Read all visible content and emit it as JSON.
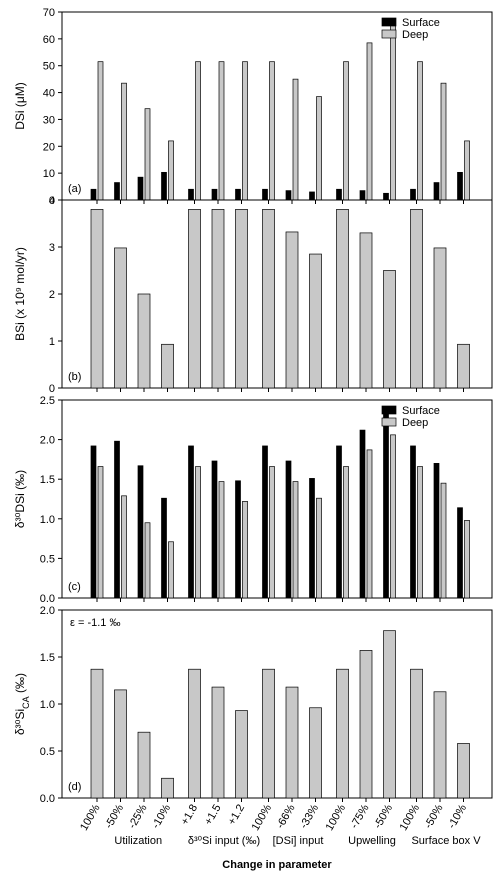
{
  "chart_data": [
    {
      "type": "bar",
      "ylabel": "DSi (μM)",
      "panel_label": "(a)",
      "ylim": [
        0,
        70
      ],
      "yticks": [
        0,
        10,
        20,
        30,
        40,
        50,
        60,
        70
      ],
      "legend": "upper right",
      "series": [
        {
          "name": "Surface",
          "color": "#000000",
          "values": [
            4,
            6.5,
            8.5,
            10.3,
            4,
            4,
            4,
            4,
            3.5,
            3,
            4,
            3.5,
            2.5,
            4,
            6.5,
            10.3
          ]
        },
        {
          "name": "Deep",
          "color": "#c8c8c8",
          "values": [
            51.5,
            43.5,
            34,
            22,
            51.5,
            51.5,
            51.5,
            51.5,
            45,
            38.5,
            51.5,
            58.5,
            65,
            51.5,
            43.5,
            22
          ]
        }
      ]
    },
    {
      "type": "bar",
      "ylabel": "BSi (x 10⁹ mol/yr)",
      "panel_label": "(b)",
      "ylim": [
        0,
        4
      ],
      "yticks": [
        0,
        1,
        2,
        3,
        4
      ],
      "series": [
        {
          "color": "#c8c8c8",
          "values": [
            3.8,
            2.98,
            2.0,
            0.93,
            3.8,
            3.8,
            3.8,
            3.8,
            3.32,
            2.85,
            3.8,
            3.3,
            2.5,
            3.8,
            2.98,
            0.93
          ]
        }
      ]
    },
    {
      "type": "bar",
      "ylabel": "δ³⁰DSi (‰)",
      "panel_label": "(c)",
      "ylim": [
        0,
        2.5
      ],
      "yticks": [
        {
          "value": 0,
          "label": "0.0"
        },
        {
          "value": 0.5,
          "label": "0.5"
        },
        {
          "value": 1,
          "label": "1.0"
        },
        {
          "value": 1.5,
          "label": "1.5"
        },
        {
          "value": 2,
          "label": "2.0"
        },
        {
          "value": 2.5,
          "label": "2.5"
        }
      ],
      "legend": "upper right",
      "series": [
        {
          "name": "Surface",
          "color": "#000000",
          "values": [
            1.92,
            1.98,
            1.67,
            1.26,
            1.92,
            1.73,
            1.48,
            1.92,
            1.73,
            1.51,
            1.92,
            2.12,
            2.33,
            1.92,
            1.7,
            1.14
          ]
        },
        {
          "name": "Deep",
          "color": "#c8c8c8",
          "values": [
            1.66,
            1.29,
            0.95,
            0.71,
            1.66,
            1.47,
            1.22,
            1.66,
            1.47,
            1.26,
            1.66,
            1.87,
            2.06,
            1.66,
            1.45,
            0.98
          ]
        }
      ]
    },
    {
      "type": "bar",
      "ylabel": [
        "δ³⁰Si",
        "CA",
        " (‰)"
      ],
      "panel_label": "(d)",
      "annotation": "ε = -1.1 ‰",
      "ylim": [
        0,
        2
      ],
      "yticks": [
        {
          "value": 0,
          "label": "0.0"
        },
        {
          "value": 0.5,
          "label": "0.5"
        },
        {
          "value": 1,
          "label": "1.0"
        },
        {
          "value": 1.5,
          "label": "1.5"
        },
        {
          "value": 2,
          "label": "2.0"
        }
      ],
      "series": [
        {
          "color": "#c8c8c8",
          "values": [
            1.37,
            1.15,
            0.7,
            0.21,
            1.37,
            1.18,
            0.93,
            1.37,
            1.18,
            0.96,
            1.37,
            1.57,
            1.78,
            1.37,
            1.13,
            0.58
          ]
        }
      ],
      "xlabel": "Change in parameter",
      "groups": [
        {
          "label": "Utilization",
          "categories": [
            "100%",
            "-50%",
            "-25%",
            "-10%"
          ]
        },
        {
          "label": "δ³⁰Si input (‰)",
          "categories": [
            "+1.8",
            "+1.5",
            "+1.2"
          ]
        },
        {
          "label": "[DSi] input",
          "categories": [
            "100%",
            "-66%",
            "-33%"
          ]
        },
        {
          "label": "Upwelling",
          "categories": [
            "100%",
            "-75%",
            "-50%"
          ]
        },
        {
          "label": "Surface box V",
          "categories": [
            "100%",
            "-50%",
            "-10%"
          ]
        }
      ]
    }
  ]
}
